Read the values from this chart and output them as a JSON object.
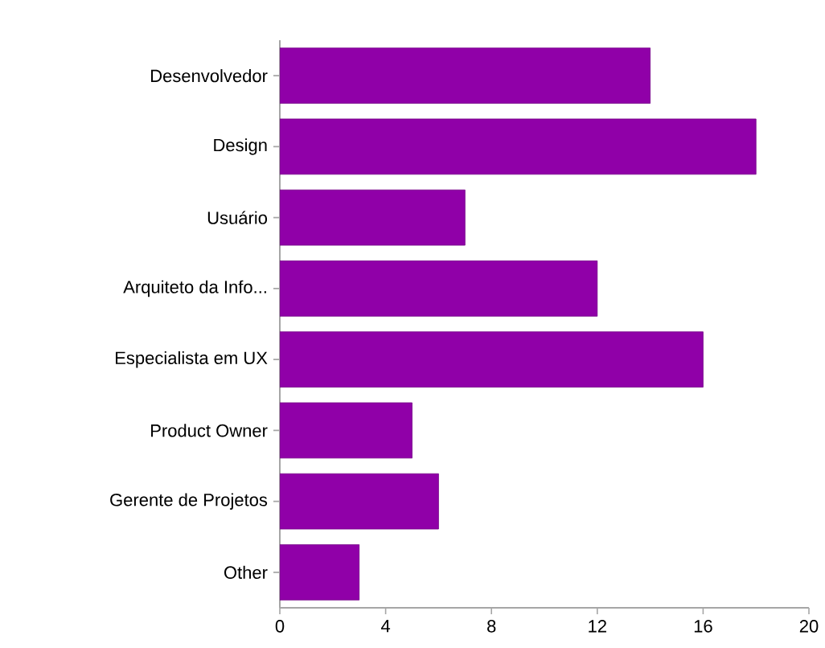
{
  "chart_data": {
    "type": "bar",
    "orientation": "horizontal",
    "categories": [
      "Desenvolvedor",
      "Design",
      "Usuário",
      "Arquiteto da Info...",
      "Especialista em UX",
      "Product Owner",
      "Gerente de Projetos",
      "Other"
    ],
    "values": [
      14,
      18,
      7,
      12,
      16,
      5,
      6,
      3
    ],
    "color": "#9000a8",
    "xlim": [
      0,
      20
    ],
    "xticks": [
      0,
      4,
      8,
      12,
      16,
      20
    ]
  }
}
